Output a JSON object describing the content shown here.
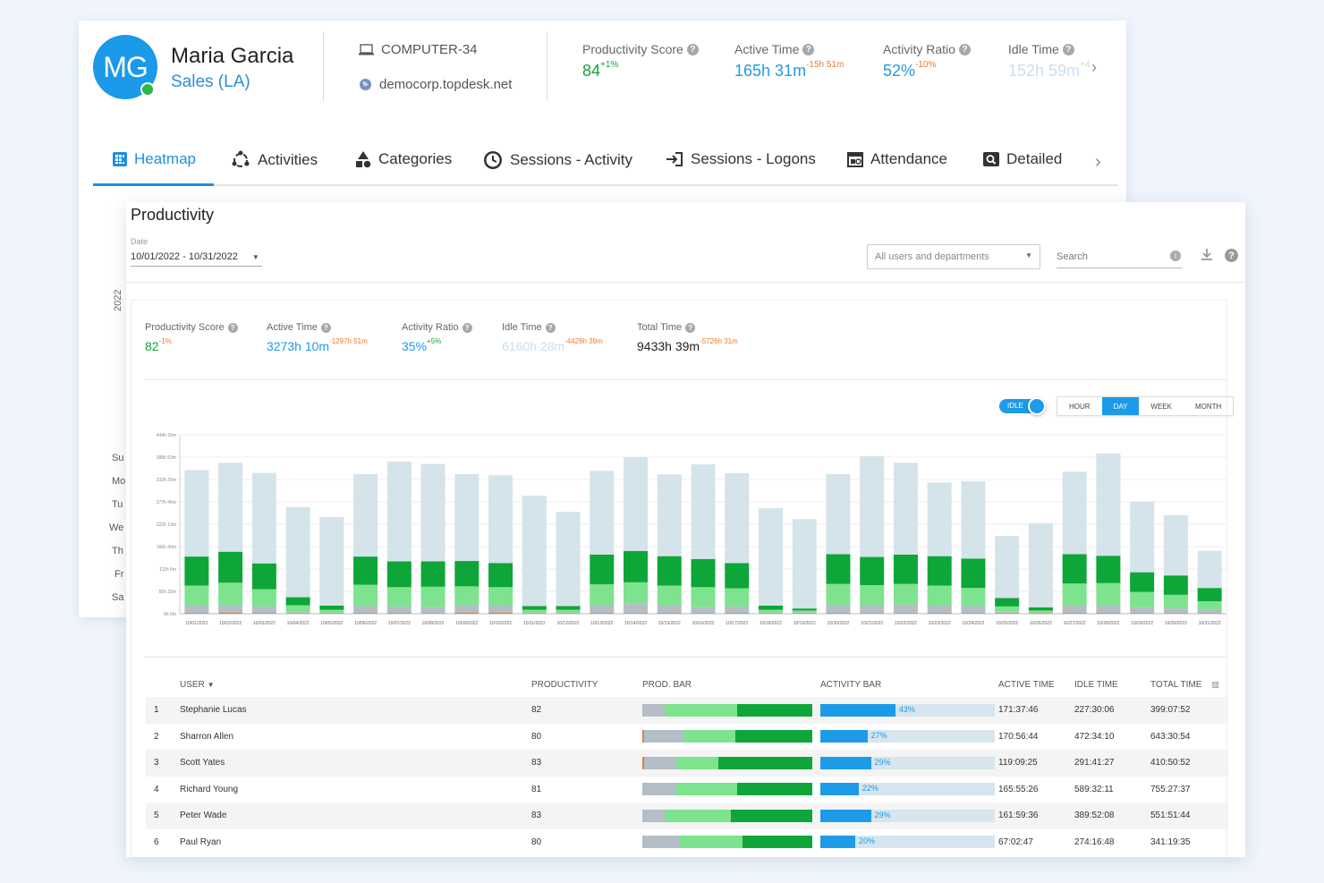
{
  "profile": {
    "initials": "MG",
    "name": "Maria Garcia",
    "department": "Sales (LA)",
    "computer": "COMPUTER-34",
    "domain": "democorp.topdesk.net",
    "stats": [
      {
        "label": "Productivity Score",
        "value": "84",
        "delta": "+1%",
        "color": "green"
      },
      {
        "label": "Active Time",
        "value": "165h 31m",
        "delta": "-15h 51m",
        "color": "blue"
      },
      {
        "label": "Activity Ratio",
        "value": "52%",
        "delta": "-10%",
        "color": "blue"
      },
      {
        "label": "Idle Time",
        "value": "152h 59m",
        "delta": "+4",
        "color": "faded"
      }
    ]
  },
  "tabs": [
    {
      "label": "Heatmap",
      "icon": "heatmap-icon",
      "active": true
    },
    {
      "label": "Activities",
      "icon": "activities-icon"
    },
    {
      "label": "Categories",
      "icon": "categories-icon"
    },
    {
      "label": "Sessions - Activity",
      "icon": "clock-icon"
    },
    {
      "label": "Sessions - Logons",
      "icon": "logon-icon"
    },
    {
      "label": "Attendance",
      "icon": "attendance-icon"
    },
    {
      "label": "Detailed",
      "icon": "detailed-icon"
    }
  ],
  "heatmap": {
    "year": "2022",
    "days": [
      "Su",
      "Mo",
      "Tu",
      "We",
      "Th",
      "Fr",
      "Sa"
    ]
  },
  "productivity": {
    "title": "Productivity",
    "date_label": "Date",
    "date_value": "10/01/2022 - 10/31/2022",
    "filter": "All users and departments",
    "search_placeholder": "Search",
    "stats": [
      {
        "label": "Productivity Score",
        "value": "82",
        "delta": "-1%",
        "color": "green"
      },
      {
        "label": "Active Time",
        "value": "3273h 10m",
        "delta": "-1297h 51m",
        "color": "blue"
      },
      {
        "label": "Activity Ratio",
        "value": "35%",
        "delta": "+5%",
        "color": "blue"
      },
      {
        "label": "Idle Time",
        "value": "6160h 28m",
        "delta": "-4428h 39m",
        "color": "faded"
      },
      {
        "label": "Total Time",
        "value": "9433h 39m",
        "delta": "-5726h 31m",
        "color": "dark"
      }
    ],
    "idle_toggle": "IDLE",
    "granularity": [
      "HOUR",
      "DAY",
      "WEEK",
      "MONTH"
    ],
    "granularity_selected": "DAY"
  },
  "chart_data": {
    "type": "bar",
    "stacked": true,
    "y_tick_labels": [
      "0h 0m",
      "55h 33m",
      "111h 6m",
      "166h 40m",
      "222h 13m",
      "277h 46m",
      "333h 20m",
      "388h 53m",
      "444h 26m"
    ],
    "ylim": [
      0,
      444.43
    ],
    "categories": [
      "10/01/2022",
      "10/02/2022",
      "10/03/2022",
      "10/04/2022",
      "10/05/2022",
      "10/06/2022",
      "10/07/2022",
      "10/08/2022",
      "10/09/2022",
      "10/10/2022",
      "10/11/2022",
      "10/12/2022",
      "10/13/2022",
      "10/14/2022",
      "10/15/2022",
      "10/16/2022",
      "10/17/2022",
      "10/18/2022",
      "10/19/2022",
      "10/20/2022",
      "10/21/2022",
      "10/22/2022",
      "10/23/2022",
      "10/24/2022",
      "10/25/2022",
      "10/26/2022",
      "10/27/2022",
      "10/28/2022",
      "10/29/2022",
      "10/30/2022",
      "10/31/2022"
    ],
    "colors": {
      "unproductive": "#f07a28",
      "neutral": "#b4bec6",
      "light_productive": "#7de38e",
      "productive": "#0ea638",
      "idle": "#d5e3ea"
    },
    "series": [
      {
        "key": "unproductive",
        "values": [
          2,
          3,
          2,
          1,
          1,
          2,
          2,
          1,
          3,
          3,
          1,
          1,
          2,
          1,
          2,
          1,
          2,
          1,
          1,
          2,
          1,
          1,
          2,
          1,
          1,
          1,
          2,
          2,
          1,
          1,
          1
        ]
      },
      {
        "key": "neutral",
        "values": [
          18,
          19,
          16,
          3,
          2,
          17,
          16,
          16,
          19,
          17,
          2,
          2,
          20,
          25,
          18,
          16,
          16,
          2,
          2,
          20,
          20,
          22,
          18,
          18,
          5,
          2,
          18,
          19,
          15,
          13,
          8
        ]
      },
      {
        "key": "light_productive",
        "values": [
          50,
          55,
          43,
          17,
          7,
          53,
          48,
          50,
          46,
          46,
          7,
          7,
          51,
          52,
          50,
          49,
          45,
          7,
          5,
          52,
          50,
          51,
          50,
          45,
          12,
          5,
          55,
          55,
          38,
          33,
          22
        ]
      },
      {
        "key": "productive",
        "values": [
          72,
          77,
          64,
          20,
          10,
          70,
          64,
          63,
          63,
          60,
          9,
          9,
          74,
          78,
          73,
          70,
          63,
          10,
          5,
          74,
          70,
          73,
          73,
          73,
          21,
          8,
          73,
          68,
          49,
          48,
          33
        ]
      },
      {
        "key": "idle",
        "values": [
          215,
          221,
          225,
          224,
          220,
          205,
          248,
          242,
          216,
          218,
          274,
          234,
          208,
          233,
          203,
          235,
          223,
          242,
          222,
          199,
          250,
          228,
          183,
          192,
          154,
          209,
          205,
          254,
          175,
          150,
          92
        ]
      }
    ]
  },
  "table": {
    "headers": [
      "USER",
      "PRODUCTIVITY",
      "PROD. BAR",
      "ACTIVITY BAR",
      "ACTIVE TIME",
      "IDLE TIME",
      "TOTAL TIME"
    ],
    "rows": [
      {
        "num": "1",
        "user": "Stephanie Lucas",
        "productivity": "82",
        "prod_bar": [
          0,
          13,
          43,
          44
        ],
        "activity": "43%",
        "activity_frac": 0.43,
        "active": "171:37:46",
        "idle": "227:30:06",
        "total": "399:07:52"
      },
      {
        "num": "2",
        "user": "Sharron Allen",
        "productivity": "80",
        "prod_bar": [
          1,
          23,
          31,
          45
        ],
        "activity": "27%",
        "activity_frac": 0.27,
        "active": "170:56:44",
        "idle": "472:34:10",
        "total": "643:30:54"
      },
      {
        "num": "3",
        "user": "Scott Yates",
        "productivity": "83",
        "prod_bar": [
          1,
          19,
          25,
          55
        ],
        "activity": "29%",
        "activity_frac": 0.29,
        "active": "119:09:25",
        "idle": "291:41:27",
        "total": "410:50:52"
      },
      {
        "num": "4",
        "user": "Richard Young",
        "productivity": "81",
        "prod_bar": [
          0,
          20,
          36,
          44
        ],
        "activity": "22%",
        "activity_frac": 0.22,
        "active": "165:55:26",
        "idle": "589:32:11",
        "total": "755:27:37"
      },
      {
        "num": "5",
        "user": "Peter Wade",
        "productivity": "83",
        "prod_bar": [
          0,
          13,
          39,
          48
        ],
        "activity": "29%",
        "activity_frac": 0.29,
        "active": "161:59:36",
        "idle": "389:52:08",
        "total": "551:51:44"
      },
      {
        "num": "6",
        "user": "Paul Ryan",
        "productivity": "80",
        "prod_bar": [
          0,
          22,
          37,
          41
        ],
        "activity": "20%",
        "activity_frac": 0.2,
        "active": "67:02:47",
        "idle": "274:16:48",
        "total": "341:19:35"
      }
    ]
  }
}
